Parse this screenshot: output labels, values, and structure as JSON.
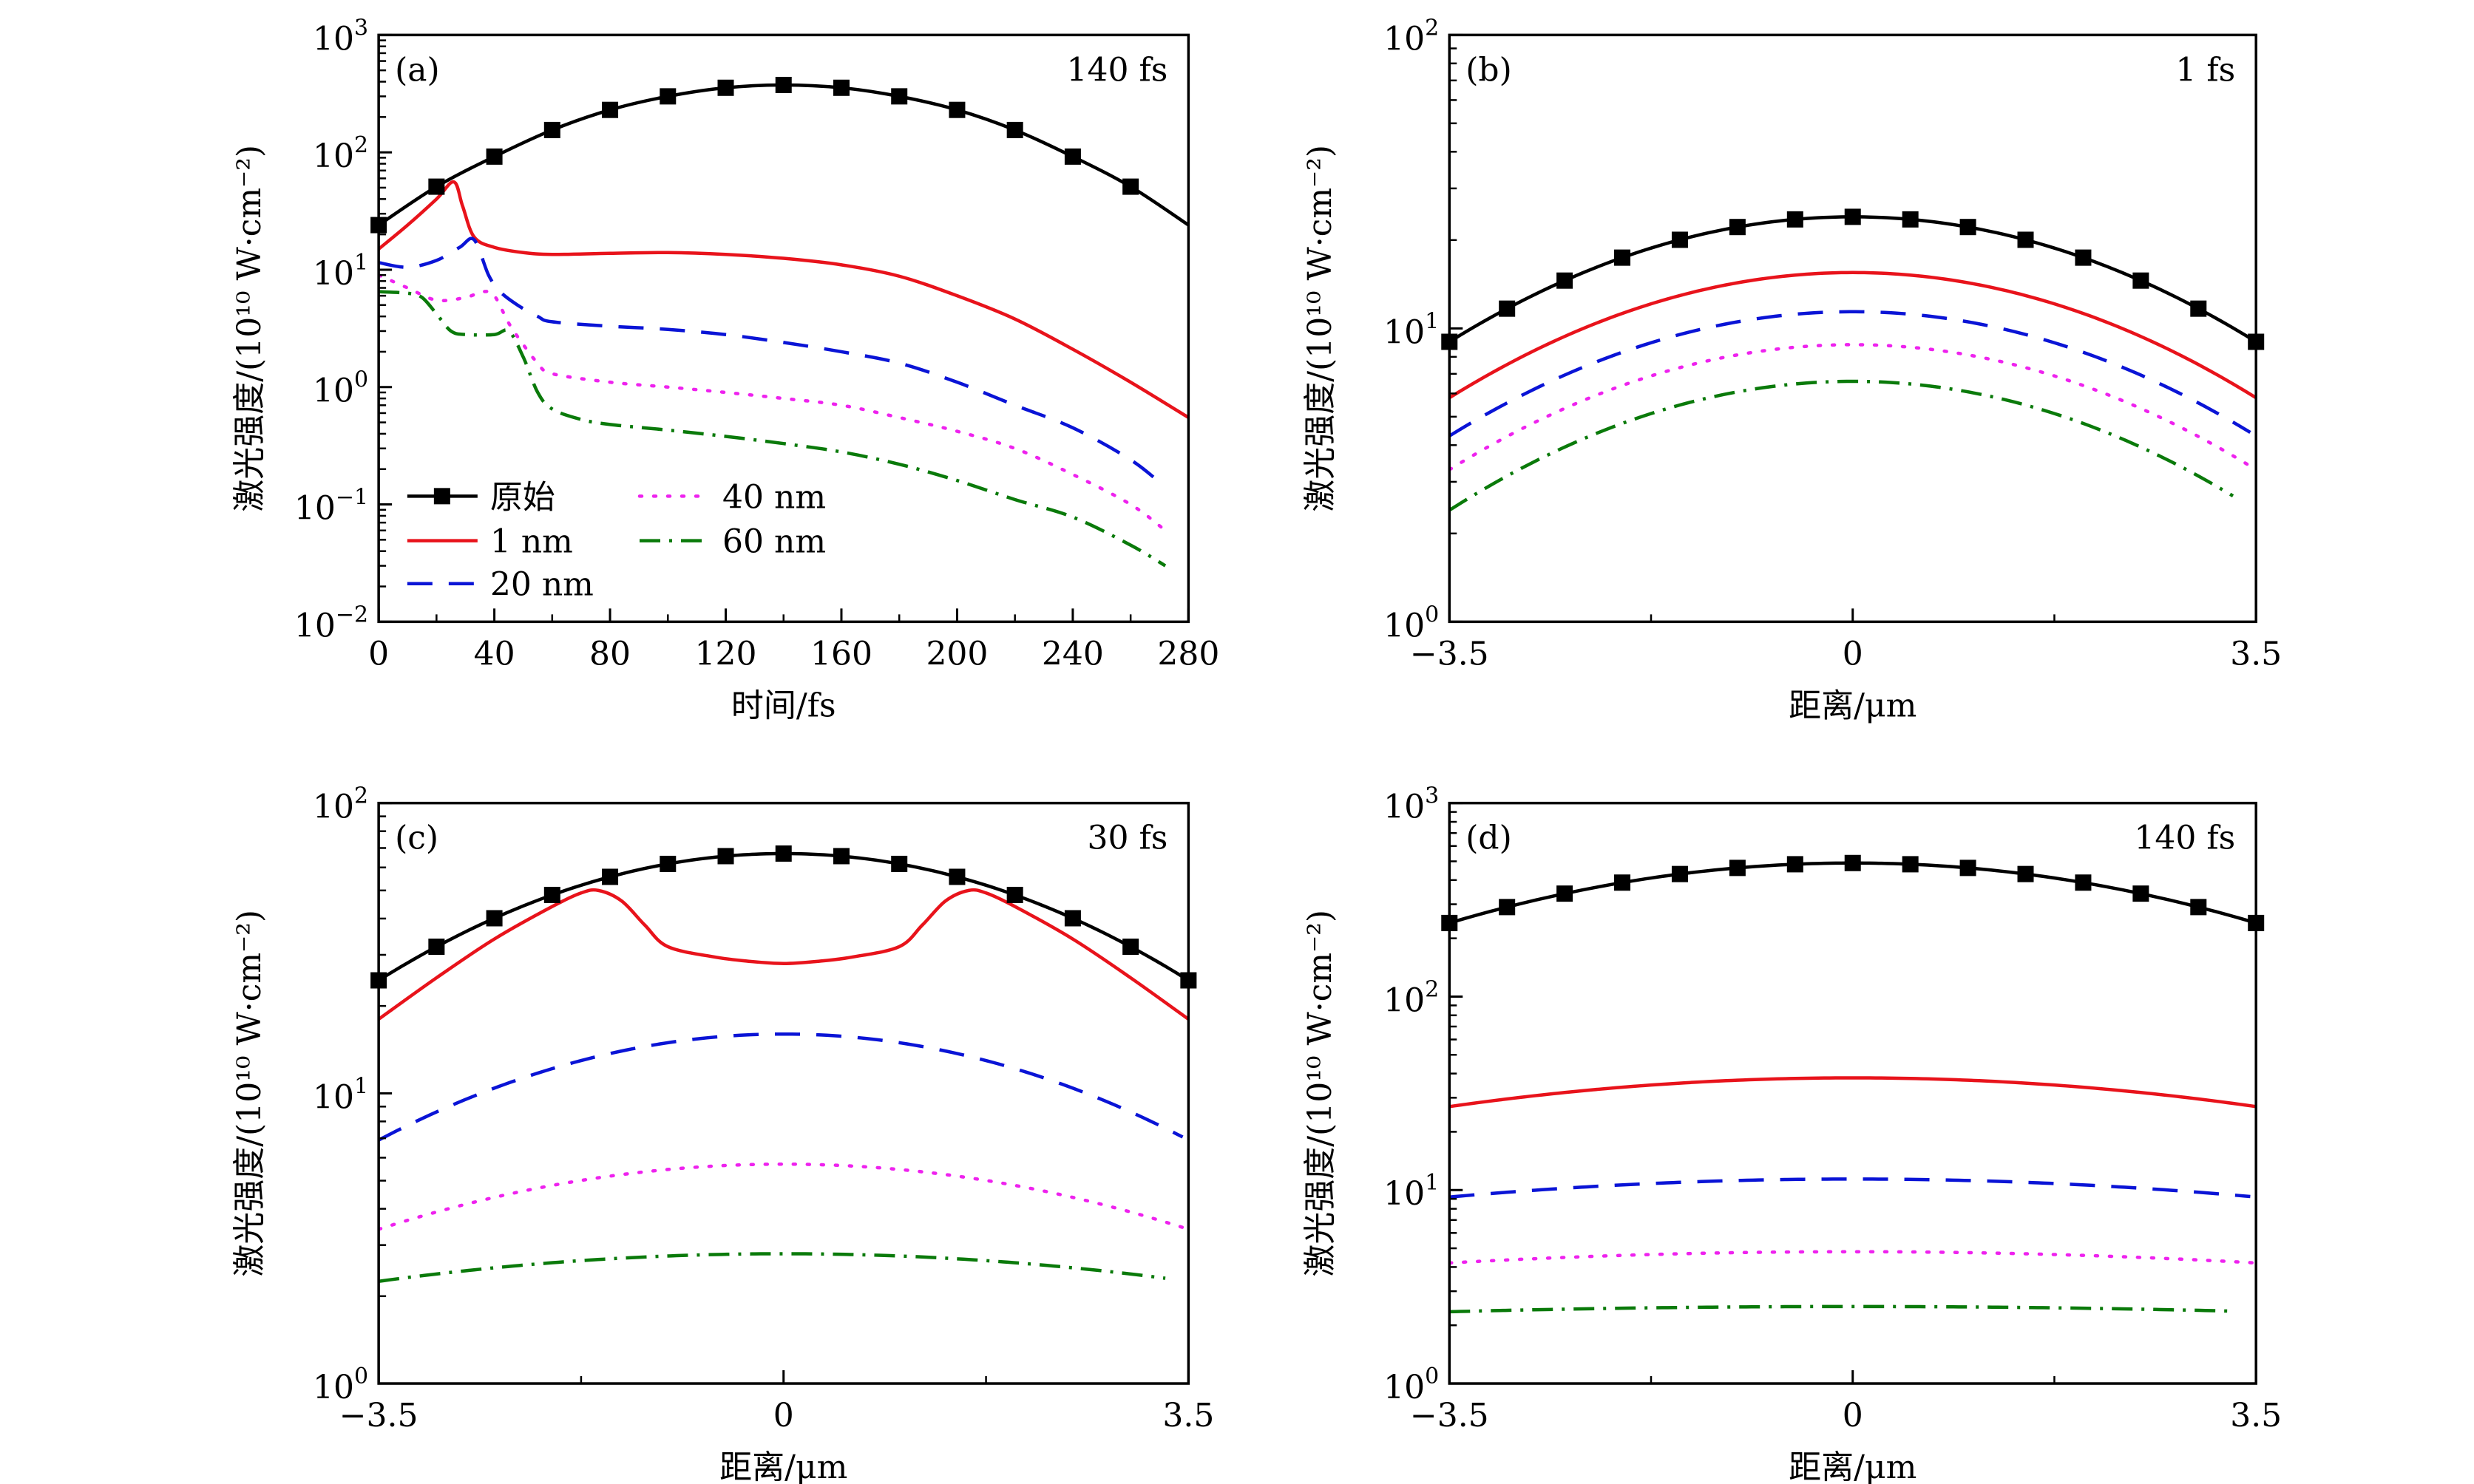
{
  "figure": {
    "ylabel": "激光强度/(10¹⁰ W·cm⁻²)",
    "legend": {
      "placement": "lower-left of panel (a)",
      "entries": [
        {
          "key": "original",
          "label": "原始"
        },
        {
          "key": "nm1",
          "label": "1 nm"
        },
        {
          "key": "nm20",
          "label": "20 nm"
        },
        {
          "key": "nm40",
          "label": "40 nm"
        },
        {
          "key": "nm60",
          "label": "60 nm"
        }
      ]
    }
  },
  "series_style": {
    "original": {
      "color": "#000000",
      "dash": "solid",
      "marker": "square"
    },
    "nm1": {
      "color": "#e8131b",
      "dash": "solid",
      "marker": "none"
    },
    "nm20": {
      "color": "#0a14d6",
      "dash": "dashed",
      "marker": "none"
    },
    "nm40": {
      "color": "#ee22ee",
      "dash": "dotted",
      "marker": "none"
    },
    "nm60": {
      "color": "#0a7a0a",
      "dash": "dash-dot",
      "marker": "none"
    }
  },
  "chart_data": [
    {
      "id": "a",
      "type": "line",
      "panel_tag": "(a)",
      "annotation": "140 fs",
      "title": "",
      "xlabel": "时间/fs",
      "ylabel": "激光强度/(10¹⁰ W·cm⁻²)",
      "xscale": "linear",
      "yscale": "log",
      "xlim": [
        0,
        280
      ],
      "ylim": [
        0.01,
        1000
      ],
      "xticks": [
        0,
        40,
        80,
        120,
        160,
        200,
        240,
        280
      ],
      "xtick_labels": [
        "0",
        "40",
        "80",
        "120",
        "160",
        "200",
        "240",
        "280"
      ],
      "yticks": [
        0.01,
        0.1,
        1,
        10,
        100,
        1000
      ],
      "ytick_labels": [
        [
          "10",
          "−2"
        ],
        [
          "10",
          "−1"
        ],
        [
          "10",
          "0"
        ],
        [
          "10",
          "1"
        ],
        [
          "10",
          "2"
        ],
        [
          "10",
          "3"
        ]
      ],
      "grid": false,
      "legend": true,
      "markers": {
        "original": [
          0,
          20,
          40,
          60,
          80,
          100,
          120,
          140,
          160,
          180,
          200,
          220,
          240,
          260
        ]
      },
      "series": [
        {
          "key": "original",
          "name": "原始",
          "x": [
            0,
            20,
            40,
            60,
            80,
            100,
            120,
            140,
            160,
            180,
            200,
            220,
            240,
            260,
            280
          ],
          "y": [
            24,
            51,
            92,
            155,
            230,
            300,
            355,
            375,
            355,
            300,
            230,
            155,
            92,
            51,
            24
          ]
        },
        {
          "key": "nm1",
          "name": "1 nm",
          "x": [
            0,
            10,
            20,
            26,
            29,
            33,
            40,
            50,
            60,
            80,
            100,
            120,
            140,
            160,
            180,
            200,
            220,
            240,
            260,
            280
          ],
          "y": [
            15,
            24,
            40,
            56,
            35,
            19,
            15.5,
            14,
            13.5,
            13.8,
            14,
            13.5,
            12.5,
            11,
            8.8,
            6,
            3.8,
            2.1,
            1.1,
            0.55
          ]
        },
        {
          "key": "nm20",
          "name": "20 nm",
          "x": [
            0,
            10,
            20,
            28,
            33,
            38,
            42,
            48,
            55,
            60,
            80,
            100,
            120,
            140,
            160,
            180,
            200,
            220,
            240,
            260,
            272
          ],
          "y": [
            11.5,
            10.5,
            12,
            15.5,
            18,
            9,
            6.5,
            5,
            4,
            3.6,
            3.3,
            3.1,
            2.8,
            2.4,
            2.0,
            1.6,
            1.1,
            0.7,
            0.45,
            0.24,
            0.14
          ]
        },
        {
          "key": "nm40",
          "name": "40 nm",
          "x": [
            0,
            10,
            20,
            30,
            36,
            40,
            45,
            50,
            55,
            60,
            80,
            100,
            120,
            140,
            160,
            180,
            200,
            220,
            240,
            260,
            272
          ],
          "y": [
            9,
            7,
            5.5,
            5.8,
            6.5,
            6,
            3.5,
            2.3,
            1.6,
            1.3,
            1.1,
            1.0,
            0.9,
            0.8,
            0.7,
            0.55,
            0.42,
            0.3,
            0.18,
            0.1,
            0.06
          ]
        },
        {
          "key": "nm60",
          "name": "60 nm",
          "x": [
            0,
            10,
            15,
            20,
            25,
            30,
            40,
            45,
            50,
            55,
            60,
            70,
            80,
            100,
            120,
            140,
            160,
            180,
            200,
            220,
            240,
            260,
            272
          ],
          "y": [
            6.5,
            6.3,
            5.8,
            4.2,
            3.0,
            2.8,
            2.8,
            3.0,
            1.8,
            0.9,
            0.65,
            0.53,
            0.48,
            0.43,
            0.38,
            0.33,
            0.28,
            0.22,
            0.16,
            0.11,
            0.078,
            0.045,
            0.03
          ]
        }
      ]
    },
    {
      "id": "b",
      "type": "line",
      "panel_tag": "(b)",
      "annotation": "1 fs",
      "title": "",
      "xlabel": "距离/μm",
      "ylabel": "激光强度/(10¹⁰ W·cm⁻²)",
      "xscale": "linear",
      "yscale": "log",
      "xlim": [
        -3.5,
        3.5
      ],
      "ylim": [
        1,
        100
      ],
      "xticks": [
        -3.5,
        0,
        3.5
      ],
      "xtick_labels": [
        "−3.5",
        "0",
        "3.5"
      ],
      "minor_xticks": [
        -1.75,
        1.75
      ],
      "yticks": [
        1,
        10,
        100
      ],
      "ytick_labels": [
        [
          "10",
          "0"
        ],
        [
          "10",
          "1"
        ],
        [
          "10",
          "2"
        ]
      ],
      "grid": false,
      "legend": false,
      "markers": {
        "original": [
          -3.5,
          -3.0,
          -2.5,
          -2.0,
          -1.5,
          -1.0,
          -0.5,
          0,
          0.5,
          1.0,
          1.5,
          2.0,
          2.5,
          3.0,
          3.5
        ]
      },
      "series": [
        {
          "key": "original",
          "name": "原始",
          "profile": {
            "peak": 24,
            "edge": 9.0,
            "x_end": 3.5
          }
        },
        {
          "key": "nm1",
          "name": "1 nm",
          "profile": {
            "peak": 15.5,
            "edge": 5.8,
            "x_end": 3.5
          }
        },
        {
          "key": "nm20",
          "name": "20 nm",
          "profile": {
            "peak": 11.4,
            "edge": 4.3,
            "x_end": 3.45
          }
        },
        {
          "key": "nm40",
          "name": "40 nm",
          "profile": {
            "peak": 8.8,
            "edge": 3.3,
            "x_end": 3.5
          }
        },
        {
          "key": "nm60",
          "name": "60 nm",
          "profile": {
            "peak": 6.6,
            "edge": 2.4,
            "x_end": 3.3
          }
        }
      ]
    },
    {
      "id": "c",
      "type": "line",
      "panel_tag": "(c)",
      "annotation": "30 fs",
      "title": "",
      "xlabel": "距离/μm",
      "ylabel": "激光强度/(10¹⁰ W·cm⁻²)",
      "xscale": "linear",
      "yscale": "log",
      "xlim": [
        -3.5,
        3.5
      ],
      "ylim": [
        1,
        100
      ],
      "xticks": [
        -3.5,
        0,
        3.5
      ],
      "xtick_labels": [
        "−3.5",
        "0",
        "3.5"
      ],
      "minor_xticks": [
        -1.75,
        1.75
      ],
      "yticks": [
        1,
        10,
        100
      ],
      "ytick_labels": [
        [
          "10",
          "0"
        ],
        [
          "10",
          "1"
        ],
        [
          "10",
          "2"
        ]
      ],
      "grid": false,
      "legend": false,
      "markers": {
        "original": [
          -3.5,
          -3.0,
          -2.5,
          -2.0,
          -1.5,
          -1.0,
          -0.5,
          0,
          0.5,
          1.0,
          1.5,
          2.0,
          2.5,
          3.0,
          3.5
        ]
      },
      "series": [
        {
          "key": "original",
          "name": "原始",
          "profile": {
            "peak": 67,
            "edge": 24.5,
            "x_end": 3.5
          }
        },
        {
          "key": "nm1",
          "name": "1 nm",
          "x": [
            -3.5,
            -3.0,
            -2.5,
            -2.0,
            -1.75,
            -1.6,
            -1.4,
            -1.2,
            -1.0,
            -0.6,
            -0.3,
            0,
            0.3,
            0.6,
            1.0,
            1.2,
            1.4,
            1.6,
            1.75,
            2.0,
            2.5,
            3.0,
            3.5
          ],
          "y": [
            18,
            25,
            34,
            44,
            49,
            50,
            46,
            38,
            32,
            29.5,
            28.5,
            28,
            28.5,
            29.5,
            32,
            38,
            46,
            50,
            49,
            44,
            34,
            25,
            18
          ]
        },
        {
          "key": "nm20",
          "name": "20 nm",
          "profile": {
            "peak": 16,
            "edge": 6.9,
            "x_end": 3.45
          }
        },
        {
          "key": "nm40",
          "name": "40 nm",
          "profile": {
            "peak": 5.7,
            "edge": 3.4,
            "x_end": 3.5
          }
        },
        {
          "key": "nm60",
          "name": "60 nm",
          "profile": {
            "peak": 2.8,
            "edge": 2.25,
            "x_end": 3.3
          }
        }
      ]
    },
    {
      "id": "d",
      "type": "line",
      "panel_tag": "(d)",
      "annotation": "140 fs",
      "title": "",
      "xlabel": "距离/μm",
      "ylabel": "激光强度/(10¹⁰ W·cm⁻²)",
      "xscale": "linear",
      "yscale": "log",
      "xlim": [
        -3.5,
        3.5
      ],
      "ylim": [
        1,
        1000
      ],
      "xticks": [
        -3.5,
        0,
        3.5
      ],
      "xtick_labels": [
        "−3.5",
        "0",
        "3.5"
      ],
      "minor_xticks": [
        -1.75,
        1.75
      ],
      "yticks": [
        1,
        10,
        100,
        1000
      ],
      "ytick_labels": [
        [
          "10",
          "0"
        ],
        [
          "10",
          "1"
        ],
        [
          "10",
          "2"
        ],
        [
          "10",
          "3"
        ]
      ],
      "grid": false,
      "legend": false,
      "markers": {
        "original": [
          -3.5,
          -3.0,
          -2.5,
          -2.0,
          -1.5,
          -1.0,
          -0.5,
          0,
          0.5,
          1.0,
          1.5,
          2.0,
          2.5,
          3.0,
          3.5
        ]
      },
      "series": [
        {
          "key": "original",
          "name": "原始",
          "profile": {
            "peak": 490,
            "edge": 240,
            "x_end": 3.5
          }
        },
        {
          "key": "nm1",
          "name": "1 nm",
          "profile": {
            "peak": 38,
            "edge": 27,
            "x_end": 3.5
          }
        },
        {
          "key": "nm20",
          "name": "20 nm",
          "profile": {
            "peak": 11.4,
            "edge": 9.2,
            "x_end": 3.45
          }
        },
        {
          "key": "nm40",
          "name": "40 nm",
          "profile": {
            "peak": 4.8,
            "edge": 4.2,
            "x_end": 3.5
          }
        },
        {
          "key": "nm60",
          "name": "60 nm",
          "profile": {
            "peak": 2.5,
            "edge": 2.35,
            "x_end": 3.3
          }
        }
      ]
    }
  ]
}
